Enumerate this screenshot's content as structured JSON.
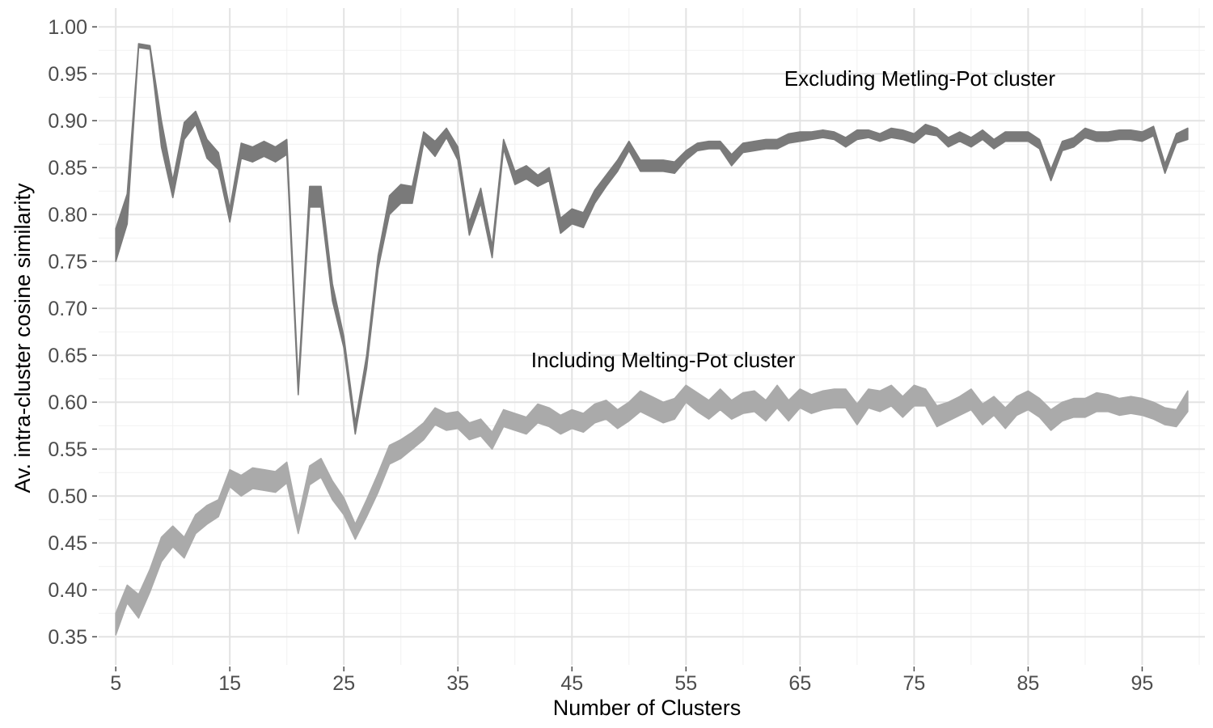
{
  "chart_data": {
    "type": "area",
    "xlabel": "Number of Clusters",
    "ylabel": "Av. intra-cluster cosine similarity",
    "xlim": [
      3.5,
      100.5
    ],
    "ylim": [
      0.32,
      1.02
    ],
    "x_ticks": [
      "5",
      "15",
      "25",
      "35",
      "45",
      "55",
      "65",
      "75",
      "85",
      "95"
    ],
    "y_ticks": [
      "0.35",
      "0.40",
      "0.45",
      "0.50",
      "0.55",
      "0.60",
      "0.65",
      "0.70",
      "0.75",
      "0.80",
      "0.85",
      "0.90",
      "0.95",
      "1.00"
    ],
    "grid": true,
    "legend": "none",
    "x": [
      5,
      6,
      7,
      8,
      9,
      10,
      11,
      12,
      13,
      14,
      15,
      16,
      17,
      18,
      19,
      20,
      21,
      22,
      23,
      24,
      25,
      26,
      27,
      28,
      29,
      30,
      31,
      32,
      33,
      34,
      35,
      36,
      37,
      38,
      39,
      40,
      41,
      42,
      43,
      44,
      45,
      46,
      47,
      48,
      49,
      50,
      51,
      52,
      53,
      54,
      55,
      56,
      57,
      58,
      59,
      60,
      61,
      62,
      63,
      64,
      65,
      66,
      67,
      68,
      69,
      70,
      71,
      72,
      73,
      74,
      75,
      76,
      77,
      78,
      79,
      80,
      81,
      82,
      83,
      84,
      85,
      86,
      87,
      88,
      89,
      90,
      91,
      92,
      93,
      94,
      95,
      96,
      97,
      98,
      99
    ],
    "series": [
      {
        "color": "#7a7a7a",
        "lower": [
          0.75,
          0.79,
          0.978,
          0.976,
          0.872,
          0.818,
          0.88,
          0.896,
          0.86,
          0.848,
          0.792,
          0.86,
          0.856,
          0.862,
          0.856,
          0.864,
          0.608,
          0.808,
          0.808,
          0.708,
          0.658,
          0.566,
          0.636,
          0.742,
          0.8,
          0.812,
          0.812,
          0.876,
          0.862,
          0.882,
          0.858,
          0.778,
          0.812,
          0.754,
          0.87,
          0.832,
          0.838,
          0.83,
          0.836,
          0.78,
          0.79,
          0.786,
          0.812,
          0.83,
          0.846,
          0.868,
          0.846,
          0.846,
          0.846,
          0.844,
          0.858,
          0.868,
          0.87,
          0.87,
          0.852,
          0.866,
          0.868,
          0.87,
          0.87,
          0.876,
          0.878,
          0.88,
          0.882,
          0.88,
          0.872,
          0.88,
          0.882,
          0.878,
          0.882,
          0.88,
          0.876,
          0.886,
          0.884,
          0.872,
          0.878,
          0.872,
          0.88,
          0.87,
          0.878,
          0.878,
          0.878,
          0.87,
          0.836,
          0.868,
          0.872,
          0.882,
          0.878,
          0.878,
          0.88,
          0.88,
          0.878,
          0.884,
          0.844,
          0.876,
          0.88
        ],
        "upper": [
          0.785,
          0.822,
          0.982,
          0.98,
          0.9,
          0.836,
          0.898,
          0.91,
          0.88,
          0.866,
          0.806,
          0.876,
          0.872,
          0.878,
          0.872,
          0.88,
          0.62,
          0.83,
          0.83,
          0.726,
          0.67,
          0.578,
          0.65,
          0.756,
          0.82,
          0.832,
          0.83,
          0.888,
          0.878,
          0.892,
          0.872,
          0.792,
          0.828,
          0.766,
          0.88,
          0.846,
          0.852,
          0.842,
          0.85,
          0.796,
          0.806,
          0.802,
          0.826,
          0.842,
          0.858,
          0.878,
          0.858,
          0.858,
          0.858,
          0.856,
          0.868,
          0.876,
          0.878,
          0.878,
          0.864,
          0.876,
          0.878,
          0.88,
          0.88,
          0.886,
          0.888,
          0.888,
          0.89,
          0.888,
          0.882,
          0.89,
          0.89,
          0.886,
          0.892,
          0.89,
          0.886,
          0.896,
          0.892,
          0.882,
          0.888,
          0.882,
          0.89,
          0.88,
          0.888,
          0.888,
          0.888,
          0.88,
          0.848,
          0.878,
          0.882,
          0.892,
          0.888,
          0.888,
          0.89,
          0.89,
          0.888,
          0.894,
          0.854,
          0.886,
          0.892
        ]
      },
      {
        "color": "#aaaaaa",
        "lower": [
          0.352,
          0.386,
          0.37,
          0.398,
          0.43,
          0.446,
          0.434,
          0.46,
          0.47,
          0.478,
          0.51,
          0.5,
          0.508,
          0.506,
          0.504,
          0.514,
          0.46,
          0.512,
          0.52,
          0.496,
          0.48,
          0.454,
          0.478,
          0.504,
          0.534,
          0.54,
          0.55,
          0.56,
          0.576,
          0.57,
          0.572,
          0.56,
          0.564,
          0.55,
          0.574,
          0.57,
          0.566,
          0.578,
          0.574,
          0.566,
          0.572,
          0.568,
          0.578,
          0.582,
          0.572,
          0.58,
          0.59,
          0.584,
          0.578,
          0.582,
          0.6,
          0.59,
          0.582,
          0.592,
          0.582,
          0.588,
          0.59,
          0.58,
          0.594,
          0.58,
          0.594,
          0.588,
          0.592,
          0.594,
          0.594,
          0.576,
          0.594,
          0.59,
          0.596,
          0.584,
          0.596,
          0.596,
          0.574,
          0.58,
          0.586,
          0.592,
          0.576,
          0.586,
          0.572,
          0.586,
          0.592,
          0.584,
          0.57,
          0.58,
          0.584,
          0.584,
          0.59,
          0.59,
          0.586,
          0.588,
          0.586,
          0.582,
          0.576,
          0.574,
          0.59
        ],
        "upper": [
          0.375,
          0.405,
          0.395,
          0.422,
          0.456,
          0.468,
          0.456,
          0.48,
          0.49,
          0.496,
          0.528,
          0.522,
          0.53,
          0.528,
          0.526,
          0.536,
          0.476,
          0.532,
          0.54,
          0.516,
          0.498,
          0.47,
          0.496,
          0.524,
          0.554,
          0.56,
          0.568,
          0.578,
          0.594,
          0.588,
          0.59,
          0.578,
          0.582,
          0.568,
          0.592,
          0.588,
          0.584,
          0.598,
          0.594,
          0.586,
          0.592,
          0.588,
          0.598,
          0.602,
          0.592,
          0.6,
          0.612,
          0.606,
          0.6,
          0.604,
          0.618,
          0.61,
          0.602,
          0.614,
          0.602,
          0.61,
          0.612,
          0.602,
          0.618,
          0.602,
          0.614,
          0.608,
          0.612,
          0.614,
          0.614,
          0.598,
          0.614,
          0.612,
          0.618,
          0.606,
          0.618,
          0.614,
          0.596,
          0.6,
          0.606,
          0.614,
          0.598,
          0.606,
          0.594,
          0.606,
          0.612,
          0.604,
          0.592,
          0.6,
          0.604,
          0.604,
          0.61,
          0.608,
          0.604,
          0.606,
          0.604,
          0.6,
          0.594,
          0.592,
          0.612
        ]
      }
    ],
    "annotations": [
      {
        "text": "Excluding Metling-Pot cluster",
        "x": 75.5,
        "y": 0.945
      },
      {
        "text": "Including Melting-Pot cluster",
        "x": 53,
        "y": 0.645
      }
    ]
  }
}
